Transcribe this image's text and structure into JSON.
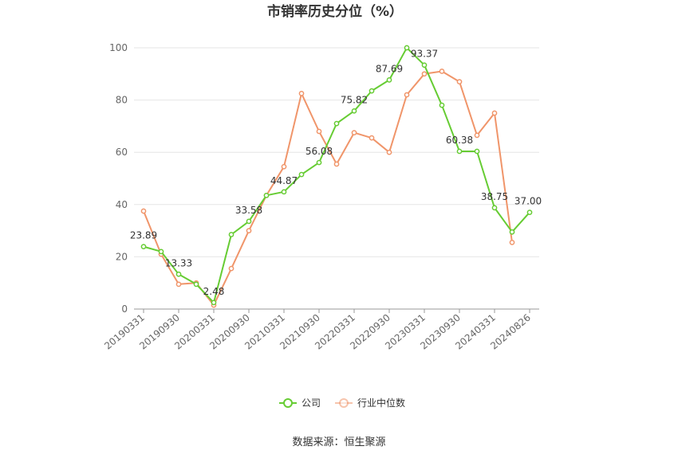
{
  "chart_data": {
    "type": "line",
    "title": "市销率历史分位（%）",
    "xlabel": "",
    "ylabel": "",
    "ylim": [
      0,
      100
    ],
    "yticks": [
      0,
      20,
      40,
      60,
      80,
      100
    ],
    "grid": true,
    "legend_position": "bottom",
    "x_tick_labels": [
      "20190331",
      "20190930",
      "20200331",
      "20200930",
      "20210331",
      "20210930",
      "20220331",
      "20220930",
      "20230331",
      "20230930",
      "20240331",
      "20240826"
    ],
    "series": [
      {
        "name": "公司",
        "color": "#66cc33",
        "values": [
          23.89,
          22.0,
          13.33,
          9.5,
          2.48,
          28.5,
          33.58,
          43.5,
          44.87,
          51.5,
          56.08,
          71.0,
          75.82,
          83.5,
          87.69,
          100.0,
          93.37,
          78.0,
          60.38,
          60.38,
          38.75,
          29.5,
          37.0
        ],
        "data_labels": [
          "23.89",
          "",
          "13.33",
          "",
          "2.48",
          "",
          "33.58",
          "",
          "44.87",
          "",
          "56.08",
          "",
          "75.82",
          "",
          "87.69",
          "",
          "93.37",
          "",
          "60.38",
          "",
          "38.75",
          "",
          "37.00"
        ]
      },
      {
        "name": "行业中位数",
        "color": "#f0956a",
        "values": [
          37.5,
          21.0,
          9.5,
          10.0,
          1.5,
          15.5,
          30.0,
          43.5,
          54.5,
          82.5,
          68.0,
          55.5,
          67.5,
          65.5,
          60.0,
          82.0,
          90.0,
          91.0,
          87.0,
          66.5,
          75.0,
          25.5,
          null
        ]
      }
    ]
  },
  "source_text": "数据来源：恒生聚源"
}
